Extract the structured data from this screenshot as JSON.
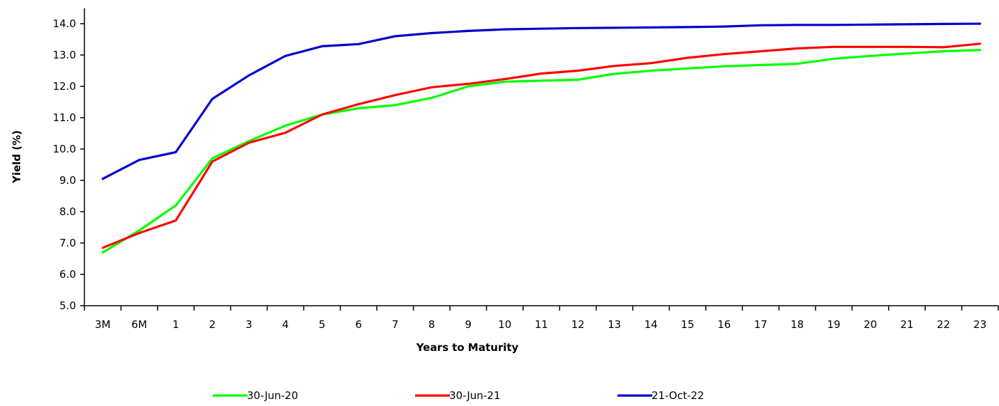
{
  "chart_data": {
    "type": "line",
    "xlabel": "Years to Maturity",
    "ylabel": "Yield (%)",
    "ylim": [
      5.0,
      14.0
    ],
    "yticks": [
      "5.0",
      "6.0",
      "7.0",
      "8.0",
      "9.0",
      "10.0",
      "11.0",
      "12.0",
      "13.0",
      "14.0"
    ],
    "categories": [
      "3M",
      "6M",
      "1",
      "2",
      "3",
      "4",
      "5",
      "6",
      "7",
      "8",
      "9",
      "10",
      "11",
      "12",
      "13",
      "14",
      "15",
      "16",
      "17",
      "18",
      "19",
      "20",
      "21",
      "22",
      "23"
    ],
    "grid": false,
    "legend_position": "bottom",
    "series": [
      {
        "name": "30-Jun-20",
        "color": "#00ff00",
        "values": [
          6.7,
          7.4,
          8.2,
          9.7,
          10.25,
          10.75,
          11.1,
          11.3,
          11.4,
          11.63,
          12.0,
          12.15,
          12.18,
          12.21,
          12.4,
          12.5,
          12.57,
          12.64,
          12.68,
          12.72,
          12.88,
          12.97,
          13.05,
          13.12,
          13.16
        ]
      },
      {
        "name": "30-Jun-21",
        "color": "#ff0000",
        "values": [
          6.85,
          7.32,
          7.72,
          9.6,
          10.2,
          10.52,
          11.1,
          11.43,
          11.72,
          11.97,
          12.08,
          12.23,
          12.41,
          12.5,
          12.65,
          12.74,
          12.91,
          13.03,
          13.12,
          13.21,
          13.26,
          13.26,
          13.26,
          13.25,
          13.36
        ]
      },
      {
        "name": "21-Oct-22",
        "color": "#0000cc",
        "values": [
          9.05,
          9.65,
          9.9,
          11.6,
          12.35,
          12.97,
          13.28,
          13.35,
          13.6,
          13.7,
          13.77,
          13.82,
          13.84,
          13.86,
          13.87,
          13.88,
          13.89,
          13.91,
          13.95,
          13.96,
          13.96,
          13.97,
          13.98,
          13.99,
          14.0
        ]
      }
    ]
  }
}
